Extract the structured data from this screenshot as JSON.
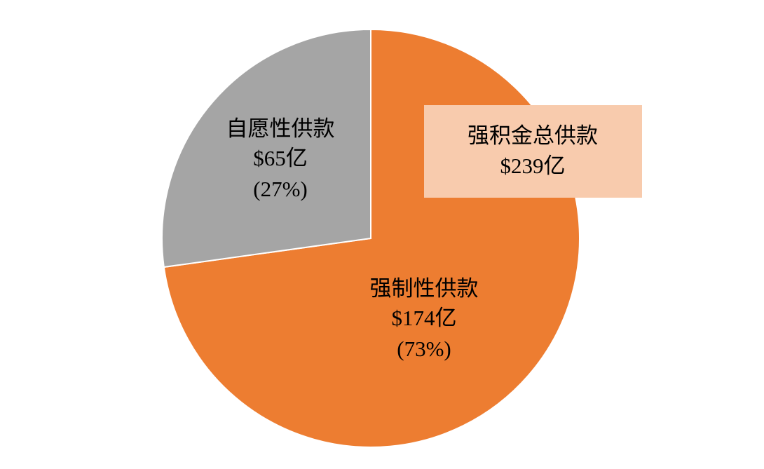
{
  "chart_data": {
    "type": "pie",
    "categories": [
      "强制性供款",
      "自愿性供款"
    ],
    "values": [
      174,
      65
    ],
    "value_labels": [
      "$174亿",
      "$65亿"
    ],
    "percentages": [
      73,
      27
    ],
    "percentage_labels": [
      "(73%)",
      "(27%)"
    ],
    "colors": [
      "#ED7D31",
      "#A5A5A5"
    ],
    "annotation": {
      "text": "强积金总供款",
      "total": 239,
      "total_label": "$239亿",
      "color": "#F8CBAD"
    }
  }
}
